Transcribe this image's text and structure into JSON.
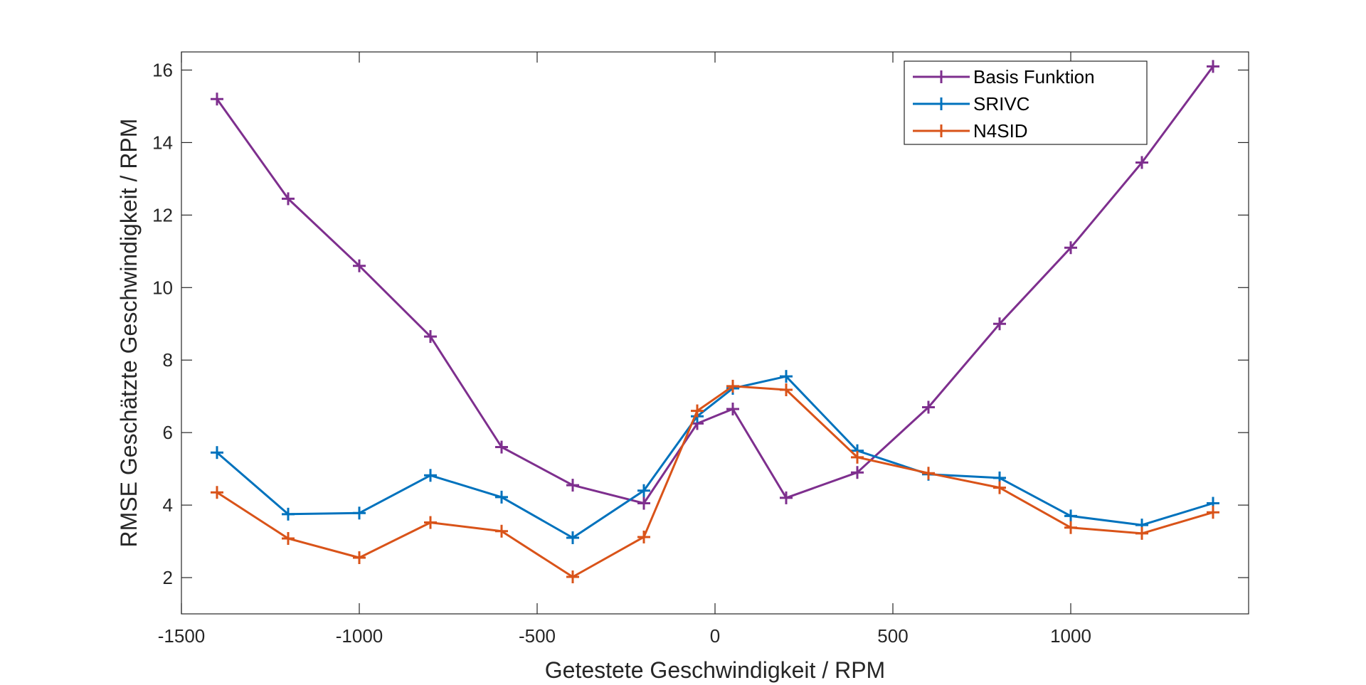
{
  "chart_data": {
    "type": "line",
    "title": "",
    "xlabel": "Getestete Geschwindigkeit / RPM",
    "ylabel": "RMSE Geschätzte Geschwindigkeit / RPM",
    "xlim": [
      -1500,
      1500
    ],
    "ylim": [
      1,
      16.5
    ],
    "xticks": [
      -1500,
      -1000,
      -500,
      0,
      500,
      1000
    ],
    "xtick_labels": [
      "-1500",
      "-1000",
      "-500",
      "0",
      "500",
      "1000"
    ],
    "yticks": [
      2,
      4,
      6,
      8,
      10,
      12,
      14,
      16
    ],
    "ytick_labels": [
      "2",
      "4",
      "6",
      "8",
      "10",
      "12",
      "14",
      "16"
    ],
    "grid": false,
    "legend_position": "top-right",
    "marker": "plus",
    "x": [
      -1400,
      -1200,
      -1000,
      -800,
      -600,
      -400,
      -200,
      -50,
      50,
      200,
      400,
      600,
      800,
      1000,
      1200,
      1400
    ],
    "series": [
      {
        "name": "Basis Funktion",
        "color": "#7E2F8E",
        "values": [
          15.2,
          12.45,
          10.6,
          8.65,
          5.6,
          4.55,
          4.05,
          6.25,
          6.65,
          4.2,
          4.9,
          6.7,
          9.0,
          11.1,
          13.45,
          16.1
        ]
      },
      {
        "name": "SRIVC",
        "color": "#0072BD",
        "values": [
          5.45,
          3.75,
          3.78,
          4.82,
          4.22,
          3.1,
          4.4,
          6.45,
          7.22,
          7.55,
          5.5,
          4.85,
          4.75,
          3.7,
          3.45,
          4.05
        ]
      },
      {
        "name": "N4SID",
        "color": "#D95319",
        "values": [
          4.35,
          3.08,
          2.55,
          3.52,
          3.28,
          2.02,
          3.12,
          6.6,
          7.28,
          7.18,
          5.32,
          4.88,
          4.48,
          3.38,
          3.22,
          3.8
        ]
      }
    ]
  }
}
